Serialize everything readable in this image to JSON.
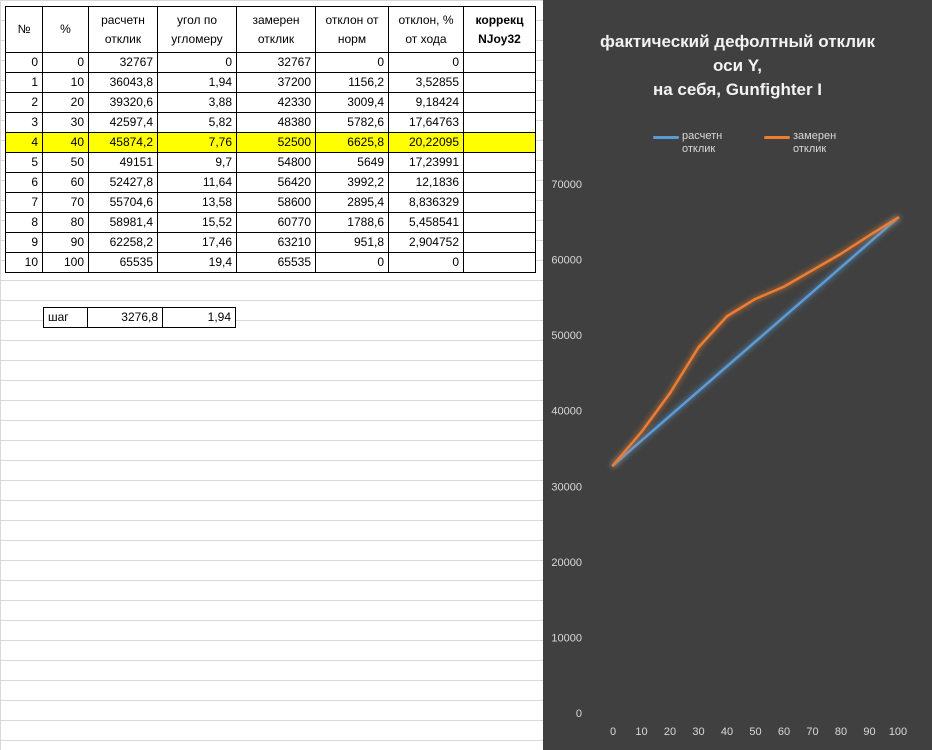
{
  "table": {
    "headers": [
      "№",
      "%",
      "расчетн отклик",
      "угол по угломеру",
      "замерен отклик",
      "отклон от норм",
      "отклон, % от хода",
      "коррекц NJoy32"
    ],
    "rows": [
      [
        "0",
        "0",
        "32767",
        "0",
        "32767",
        "0",
        "0",
        ""
      ],
      [
        "1",
        "10",
        "36043,8",
        "1,94",
        "37200",
        "1156,2",
        "3,52855",
        ""
      ],
      [
        "2",
        "20",
        "39320,6",
        "3,88",
        "42330",
        "3009,4",
        "9,18424",
        ""
      ],
      [
        "3",
        "30",
        "42597,4",
        "5,82",
        "48380",
        "5782,6",
        "17,64763",
        ""
      ],
      [
        "4",
        "40",
        "45874,2",
        "7,76",
        "52500",
        "6625,8",
        "20,22095",
        ""
      ],
      [
        "5",
        "50",
        "49151",
        "9,7",
        "54800",
        "5649",
        "17,23991",
        ""
      ],
      [
        "6",
        "60",
        "52427,8",
        "11,64",
        "56420",
        "3992,2",
        "12,1836",
        ""
      ],
      [
        "7",
        "70",
        "55704,6",
        "13,58",
        "58600",
        "2895,4",
        "8,836329",
        ""
      ],
      [
        "8",
        "80",
        "58981,4",
        "15,52",
        "60770",
        "1788,6",
        "5,458541",
        ""
      ],
      [
        "9",
        "90",
        "62258,2",
        "17,46",
        "63210",
        "951,8",
        "2,904752",
        ""
      ],
      [
        "10",
        "100",
        "65535",
        "19,4",
        "65535",
        "0",
        "0",
        ""
      ]
    ],
    "highlight_row": 4,
    "highlight_color": "#ffff00"
  },
  "step": {
    "label": "шаг",
    "value1": "3276,8",
    "value2": "1,94"
  },
  "chart_data": {
    "type": "line",
    "title": "фактический дефолтный отклик\nоси Y,\nна себя, Gunfighter I",
    "x": [
      0,
      10,
      20,
      30,
      40,
      50,
      60,
      70,
      80,
      90,
      100
    ],
    "series": [
      {
        "name": "расчетн отклик",
        "color": "#5b9bd5",
        "values": [
          32767,
          36043.8,
          39320.6,
          42597.4,
          45874.2,
          49151,
          52427.8,
          55704.6,
          58981.4,
          62258.2,
          65535
        ]
      },
      {
        "name": "замерен отклик",
        "color": "#ed7d31",
        "values": [
          32767,
          37200,
          42330,
          48380,
          52500,
          54800,
          56420,
          58600,
          60770,
          63210,
          65535
        ]
      }
    ],
    "ylim": [
      0,
      70000
    ],
    "yticks": [
      0,
      10000,
      20000,
      30000,
      40000,
      50000,
      60000,
      70000
    ],
    "xticks": [
      0,
      10,
      20,
      30,
      40,
      50,
      60,
      70,
      80,
      90,
      100
    ],
    "legend": "top",
    "background": "#404040",
    "grid": false
  }
}
